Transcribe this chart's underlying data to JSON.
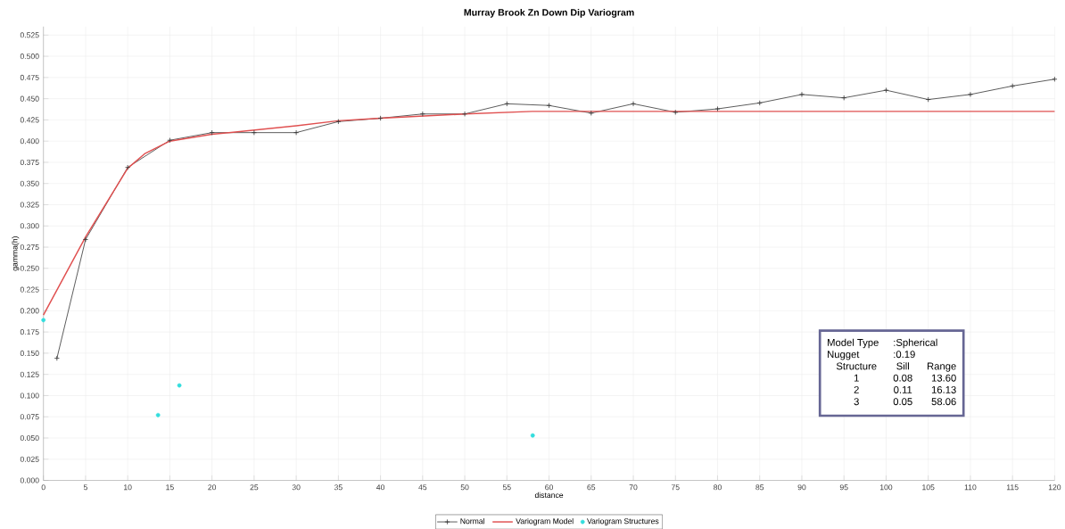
{
  "chart_data": {
    "type": "line",
    "title": "Murray Brook Zn Down Dip Variogram",
    "xlabel": "distance",
    "ylabel": "gamma(h)",
    "series": [
      {
        "name": "Normal",
        "color": "#333333",
        "marker": "cross",
        "x": [
          1.6,
          5,
          10,
          15,
          20,
          25,
          30,
          35,
          40,
          45,
          50,
          55,
          60,
          65,
          70,
          75,
          80,
          85,
          90,
          95,
          100,
          105,
          110,
          115,
          120
        ],
        "values": [
          0.144,
          0.284,
          0.369,
          0.401,
          0.41,
          0.41,
          0.41,
          0.423,
          0.427,
          0.432,
          0.432,
          0.444,
          0.442,
          0.433,
          0.444,
          0.434,
          0.438,
          0.445,
          0.455,
          0.451,
          0.46,
          0.449,
          0.455,
          0.465,
          0.473
        ]
      },
      {
        "name": "Variogram Model",
        "color": "#e05050",
        "marker": "none",
        "x": [
          0,
          5,
          10,
          12,
          15,
          20,
          30,
          35,
          40,
          50,
          58,
          120
        ],
        "values": [
          0.195,
          0.287,
          0.368,
          0.385,
          0.4,
          0.408,
          0.418,
          0.424,
          0.427,
          0.432,
          0.435,
          0.435
        ]
      },
      {
        "name": "Variogram Structures",
        "type": "scatter",
        "color": "#33dddd",
        "marker": "circle",
        "x": [
          0,
          13.6,
          16.13,
          58.06
        ],
        "values": [
          0.189,
          0.077,
          0.112,
          0.053
        ]
      }
    ],
    "xlim": [
      0,
      120
    ],
    "ylim": [
      0,
      0.535
    ],
    "xticks": [
      0,
      5,
      10,
      15,
      20,
      25,
      30,
      35,
      40,
      45,
      50,
      55,
      60,
      65,
      70,
      75,
      80,
      85,
      90,
      95,
      100,
      105,
      110,
      115,
      120
    ],
    "yticks": [
      {
        "value": 0,
        "label": "0.000"
      },
      {
        "value": 0.025,
        "label": "0.025"
      },
      {
        "value": 0.05,
        "label": "0.050"
      },
      {
        "value": 0.075,
        "label": "0.075"
      },
      {
        "value": 0.1,
        "label": "0.100"
      },
      {
        "value": 0.125,
        "label": "0.125"
      },
      {
        "value": 0.15,
        "label": "0.150"
      },
      {
        "value": 0.175,
        "label": "0.175"
      },
      {
        "value": 0.2,
        "label": "0.200"
      },
      {
        "value": 0.225,
        "label": "0.225"
      },
      {
        "value": 0.25,
        "label": "0.250"
      },
      {
        "value": 0.275,
        "label": "0.275"
      },
      {
        "value": 0.3,
        "label": "0.300"
      },
      {
        "value": 0.325,
        "label": "0.325"
      },
      {
        "value": 0.35,
        "label": "0.350"
      },
      {
        "value": 0.375,
        "label": "0.375"
      },
      {
        "value": 0.4,
        "label": "0.400"
      },
      {
        "value": 0.425,
        "label": "0.425"
      },
      {
        "value": 0.45,
        "label": "0.450"
      },
      {
        "value": 0.475,
        "label": "0.475"
      },
      {
        "value": 0.5,
        "label": "0.500"
      },
      {
        "value": 0.525,
        "label": "0.525"
      }
    ],
    "grid": true,
    "legend": "bottom",
    "annotations": [
      "Model Type",
      ":Spherical",
      "Nugget",
      ":0.19",
      "Structure",
      "Sill",
      "Range",
      "1",
      "0.08",
      "13.60",
      "2",
      "0.11",
      "16.13",
      "3",
      "0.05",
      "58.06"
    ]
  }
}
